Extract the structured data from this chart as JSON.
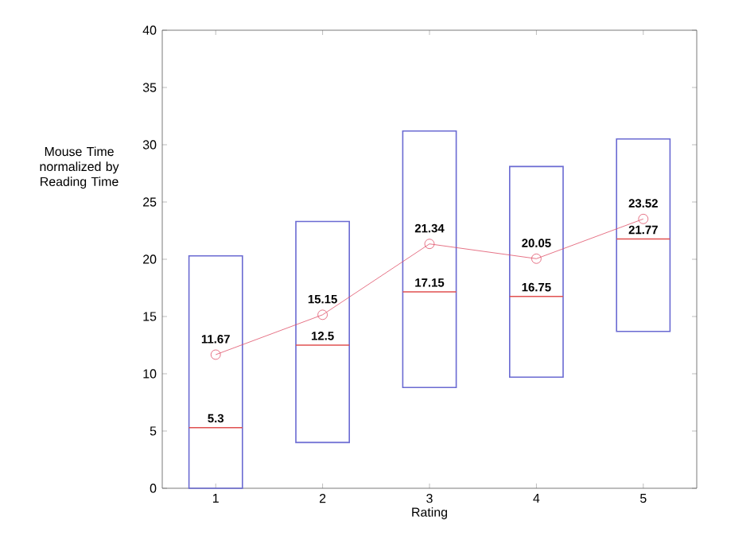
{
  "chart_data": {
    "type": "box",
    "xlabel": "Rating",
    "ylabel": "Mouse Time normalized by Reading Time",
    "categories": [
      "1",
      "2",
      "3",
      "4",
      "5"
    ],
    "ylim": [
      0,
      40
    ],
    "yticks": [
      0,
      5,
      10,
      15,
      20,
      25,
      30,
      35,
      40
    ],
    "series": [
      {
        "color": "#6a6ad2",
        "boxes": [
          {
            "low": 0,
            "q1": 0,
            "median": 5.3,
            "q3": 20.3,
            "high": 20.3
          },
          {
            "low": 4,
            "q1": 4,
            "median": 12.5,
            "q3": 23.3,
            "high": 23.3
          },
          {
            "low": 8.8,
            "q1": 8.8,
            "median": 17.15,
            "q3": 31.2,
            "high": 31.2
          },
          {
            "low": 9.7,
            "q1": 9.7,
            "median": 16.75,
            "q3": 28.1,
            "high": 28.1
          },
          {
            "low": 13.7,
            "q1": 13.7,
            "median": 21.77,
            "q3": 30.5,
            "high": 30.5
          }
        ]
      },
      {
        "type": "line",
        "color": "#e05068",
        "marker": "circle",
        "values": [
          11.67,
          15.15,
          21.34,
          20.05,
          23.52
        ],
        "value_labels": [
          "11.67",
          "15.15",
          "21.34",
          "20.05",
          "23.52"
        ]
      }
    ],
    "annotations": [
      {
        "text": "5.3",
        "x": "1",
        "y": 5.3
      },
      {
        "text": "12.5",
        "x": "2",
        "y": 12.5
      },
      {
        "text": "17.15",
        "x": "3",
        "y": 17.15
      },
      {
        "text": "16.75",
        "x": "4",
        "y": 16.75
      },
      {
        "text": "21.77",
        "x": "5",
        "y": 21.77
      }
    ]
  }
}
